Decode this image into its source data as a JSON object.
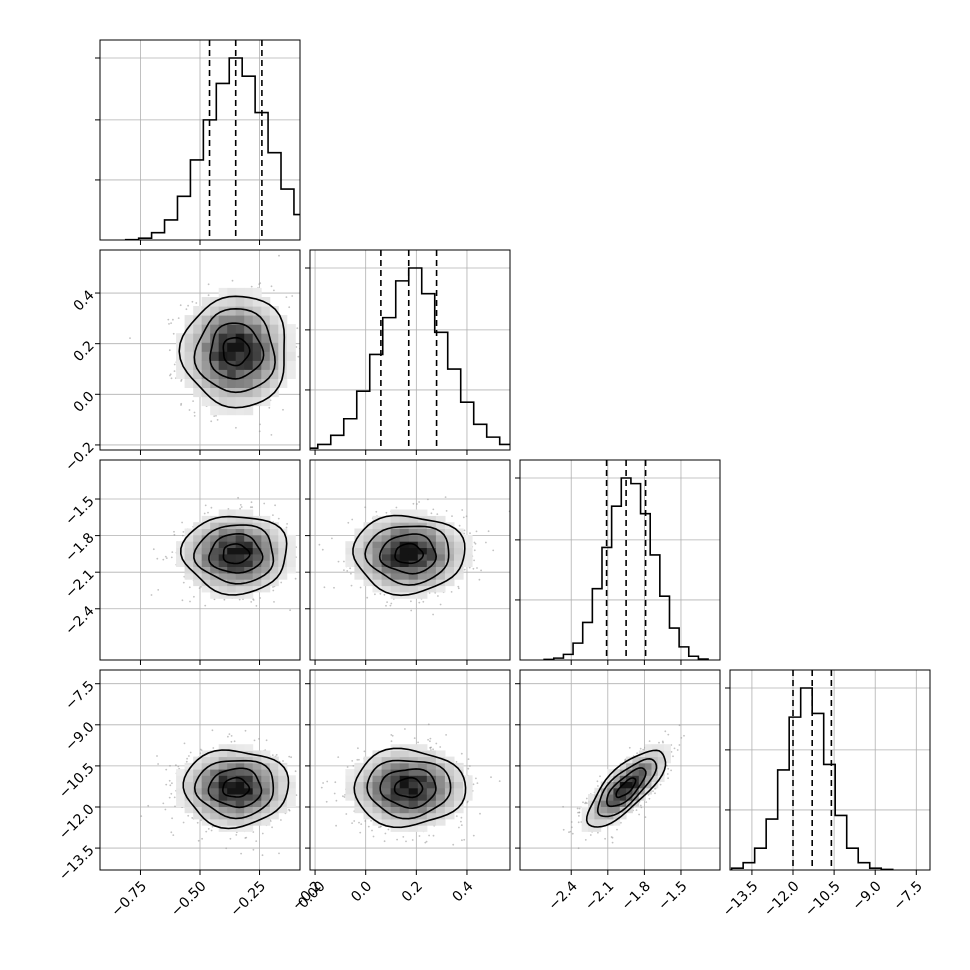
{
  "chart_data": {
    "type": "corner",
    "grid": true,
    "ticks": {
      "x": [
        [
          "−0.75",
          "−0.50",
          "−0.25",
          "0.00"
        ],
        [
          "−0.2",
          "0.0",
          "0.2",
          "0.4"
        ],
        [
          "−2.4",
          "−2.1",
          "−1.8",
          "−1.5"
        ],
        [
          "−13.5",
          "−12.0",
          "−10.5",
          "−9.0",
          "−7.5"
        ]
      ],
      "y": [
        [],
        [
          "−0.2",
          "0.0",
          "0.2",
          "0.4"
        ],
        [
          "−2.4",
          "−2.1",
          "−1.8",
          "−1.5"
        ],
        [
          "−13.5",
          "−12.0",
          "−10.5",
          "−9.0",
          "−7.5"
        ]
      ]
    },
    "parameters": [
      {
        "range": [
          -0.92,
          -0.08
        ],
        "ticks": [
          -0.75,
          -0.5,
          -0.25,
          0.0
        ],
        "mean": -0.35,
        "sd": 0.11,
        "quantiles": [
          -0.46,
          -0.35,
          -0.24
        ],
        "hist": [
          0.2,
          1,
          4,
          11,
          24,
          44,
          66,
          86,
          100,
          90,
          70,
          48,
          28,
          14,
          6,
          2,
          0.5
        ]
      },
      {
        "range": [
          -0.22,
          0.57
        ],
        "ticks": [
          -0.2,
          0.0,
          0.2,
          0.4
        ],
        "mean": 0.17,
        "sd": 0.11,
        "quantiles": [
          0.06,
          0.17,
          0.28
        ],
        "hist": [
          0.3,
          1,
          3,
          8,
          17,
          32,
          52,
          72,
          92,
          99,
          85,
          64,
          44,
          26,
          14,
          7,
          3,
          1
        ]
      },
      {
        "range": [
          -2.82,
          -1.18
        ],
        "ticks": [
          -2.4,
          -2.1,
          -1.8,
          -1.5
        ],
        "mean": -1.95,
        "sd": 0.16,
        "quantiles": [
          -2.11,
          -1.95,
          -1.79
        ],
        "hist": [
          0.3,
          1,
          3,
          9,
          20,
          38,
          60,
          82,
          97,
          94,
          78,
          56,
          34,
          17,
          7,
          2,
          0.5
        ]
      },
      {
        "range": [
          -14.3,
          -7.0
        ],
        "ticks": [
          -13.5,
          -12.0,
          -10.5,
          -9.0,
          -7.5
        ],
        "mean": -11.3,
        "sd": 0.7,
        "quantiles": [
          -12.0,
          -11.3,
          -10.6
        ],
        "hist": [
          1,
          4,
          12,
          28,
          55,
          84,
          100,
          86,
          58,
          30,
          12,
          4,
          1,
          0.3
        ]
      }
    ],
    "correlations": {
      "1-0": 0.0,
      "2-0": 0.0,
      "2-1": 0.0,
      "3-0": 0.0,
      "3-1": 0.0,
      "3-2": 0.75
    },
    "contour_levels_sigma": [
      0.5,
      1.0,
      1.5,
      2.0
    ],
    "colors": {
      "line": "#000000",
      "grid": "#b0b0b0",
      "points": "#9a9a9a"
    }
  }
}
